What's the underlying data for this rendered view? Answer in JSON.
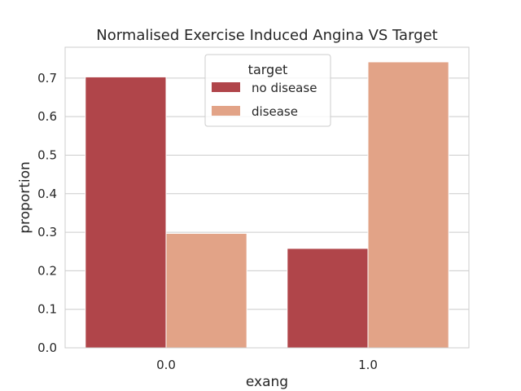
{
  "chart_data": {
    "type": "bar",
    "title": "Normalised Exercise Induced Angina VS Target",
    "xlabel": "exang",
    "ylabel": "proportion",
    "categories": [
      "0.0",
      "1.0"
    ],
    "series": [
      {
        "name": "no disease",
        "values": [
          0.703,
          0.258
        ],
        "color": "#b0454a"
      },
      {
        "name": "disease",
        "values": [
          0.297,
          0.742
        ],
        "color": "#e2a387"
      }
    ],
    "ylim": [
      0,
      0.78
    ],
    "yticks": [
      0.0,
      0.1,
      0.2,
      0.3,
      0.4,
      0.5,
      0.6,
      0.7
    ],
    "ytick_labels": [
      "0.0",
      "0.1",
      "0.2",
      "0.3",
      "0.4",
      "0.5",
      "0.6",
      "0.7"
    ],
    "legend": {
      "title": "target",
      "placement": "top-center"
    },
    "grid": true
  }
}
